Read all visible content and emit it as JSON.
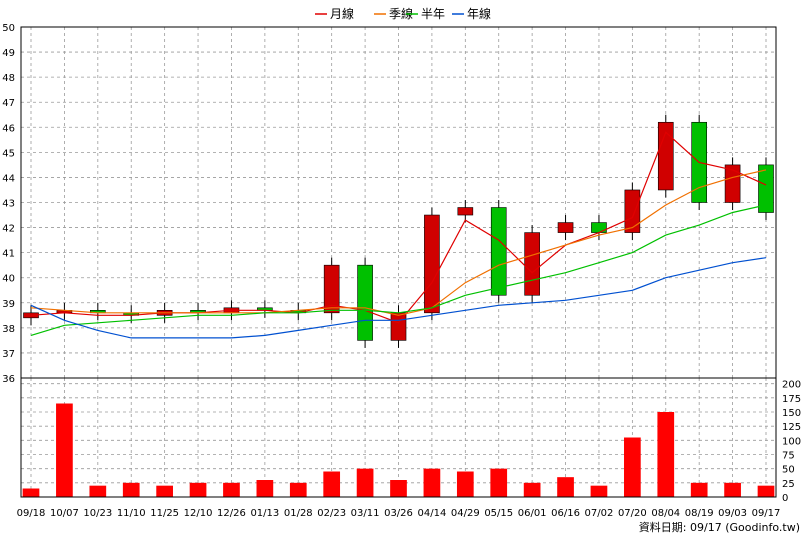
{
  "chart_data": {
    "type": "candlestick",
    "legend": [
      {
        "name": "月線",
        "color": "#e00000"
      },
      {
        "name": "季線",
        "color": "#f07000"
      },
      {
        "name": "半年",
        "color": "#00c000"
      },
      {
        "name": "年線",
        "color": "#0050d0"
      }
    ],
    "legend_position": "top-center",
    "grid": true,
    "price_ylim": [
      36,
      50
    ],
    "price_ticks": [
      "36",
      "37",
      "38",
      "39",
      "40",
      "41",
      "42",
      "43",
      "44",
      "45",
      "46",
      "47",
      "48",
      "49",
      "50"
    ],
    "volume_ylim": [
      0,
      210
    ],
    "volume_ticks": [
      "0",
      "25",
      "50",
      "75",
      "100",
      "125",
      "150",
      "175",
      "200"
    ],
    "x_labels": [
      "09/18",
      "10/07",
      "10/23",
      "11/10",
      "11/25",
      "12/10",
      "12/26",
      "01/13",
      "01/28",
      "02/23",
      "03/11",
      "03/26",
      "04/14",
      "04/29",
      "05/15",
      "06/01",
      "06/16",
      "07/02",
      "07/20",
      "08/04",
      "08/19",
      "09/03",
      "09/17"
    ],
    "up_color": "#d00000",
    "down_color": "#00c000",
    "volume_color": "#ff0000",
    "footer": "資料日期: 09/17  (Goodinfo.tw)",
    "price_series": [
      {
        "label": "09/18",
        "close": 38.6
      },
      {
        "label": "10/07",
        "close": 38.7
      },
      {
        "label": "10/23",
        "close": 38.6
      },
      {
        "label": "11/10",
        "close": 38.5
      },
      {
        "label": "11/25",
        "close": 38.7
      },
      {
        "label": "12/10",
        "close": 38.6
      },
      {
        "label": "12/26",
        "close": 38.8
      },
      {
        "label": "01/13",
        "close": 38.7
      },
      {
        "label": "01/28",
        "close": 38.6
      },
      {
        "label": "02/23",
        "close": 40.5
      },
      {
        "label": "03/11",
        "close": 37.5
      },
      {
        "label": "03/26",
        "close": 38.6
      },
      {
        "label": "04/14",
        "close": 42.5
      },
      {
        "label": "04/29",
        "close": 42.8
      },
      {
        "label": "05/15",
        "close": 39.3
      },
      {
        "label": "06/01",
        "close": 41.8
      },
      {
        "label": "06/16",
        "close": 42.2
      },
      {
        "label": "07/02",
        "close": 41.8
      },
      {
        "label": "07/20",
        "close": 43.5
      },
      {
        "label": "08/04",
        "close": 46.2
      },
      {
        "label": "08/19",
        "close": 43.0
      },
      {
        "label": "09/03",
        "close": 44.5
      },
      {
        "label": "09/17",
        "close": 42.6
      }
    ],
    "volume_series": [
      {
        "label": "09/18",
        "value": 15
      },
      {
        "label": "10/07",
        "value": 165
      },
      {
        "label": "10/23",
        "value": 20
      },
      {
        "label": "11/10",
        "value": 25
      },
      {
        "label": "11/25",
        "value": 20
      },
      {
        "label": "12/10",
        "value": 25
      },
      {
        "label": "12/26",
        "value": 25
      },
      {
        "label": "01/13",
        "value": 30
      },
      {
        "label": "01/28",
        "value": 25
      },
      {
        "label": "02/23",
        "value": 45
      },
      {
        "label": "03/11",
        "value": 50
      },
      {
        "label": "03/26",
        "value": 30
      },
      {
        "label": "04/14",
        "value": 50
      },
      {
        "label": "04/29",
        "value": 45
      },
      {
        "label": "05/15",
        "value": 50
      },
      {
        "label": "06/01",
        "value": 25
      },
      {
        "label": "06/16",
        "value": 35
      },
      {
        "label": "07/02",
        "value": 20
      },
      {
        "label": "07/20",
        "value": 105
      },
      {
        "label": "08/04",
        "value": 150
      },
      {
        "label": "08/19",
        "value": 25
      },
      {
        "label": "09/03",
        "value": 25
      },
      {
        "label": "09/17",
        "value": 20
      }
    ],
    "ma_month": [
      38.5,
      38.6,
      38.5,
      38.5,
      38.6,
      38.6,
      38.7,
      38.7,
      38.6,
      38.9,
      38.7,
      38.2,
      39.8,
      42.3,
      41.5,
      40.2,
      41.3,
      41.8,
      42.4,
      45.8,
      44.6,
      44.3,
      43.7
    ],
    "ma_quarter": [
      38.8,
      38.7,
      38.6,
      38.6,
      38.6,
      38.6,
      38.6,
      38.6,
      38.7,
      38.8,
      38.8,
      38.5,
      38.8,
      39.8,
      40.5,
      40.9,
      41.3,
      41.7,
      42.0,
      42.9,
      43.6,
      44.0,
      44.3
    ],
    "ma_half": [
      37.7,
      38.1,
      38.2,
      38.3,
      38.4,
      38.5,
      38.5,
      38.6,
      38.6,
      38.7,
      38.7,
      38.6,
      38.8,
      39.3,
      39.6,
      39.9,
      40.2,
      40.6,
      41.0,
      41.7,
      42.1,
      42.6,
      42.9
    ],
    "ma_year": [
      38.9,
      38.3,
      37.9,
      37.6,
      37.6,
      37.6,
      37.6,
      37.7,
      37.9,
      38.1,
      38.3,
      38.3,
      38.5,
      38.7,
      38.9,
      39.0,
      39.1,
      39.3,
      39.5,
      40.0,
      40.3,
      40.6,
      40.8
    ]
  }
}
